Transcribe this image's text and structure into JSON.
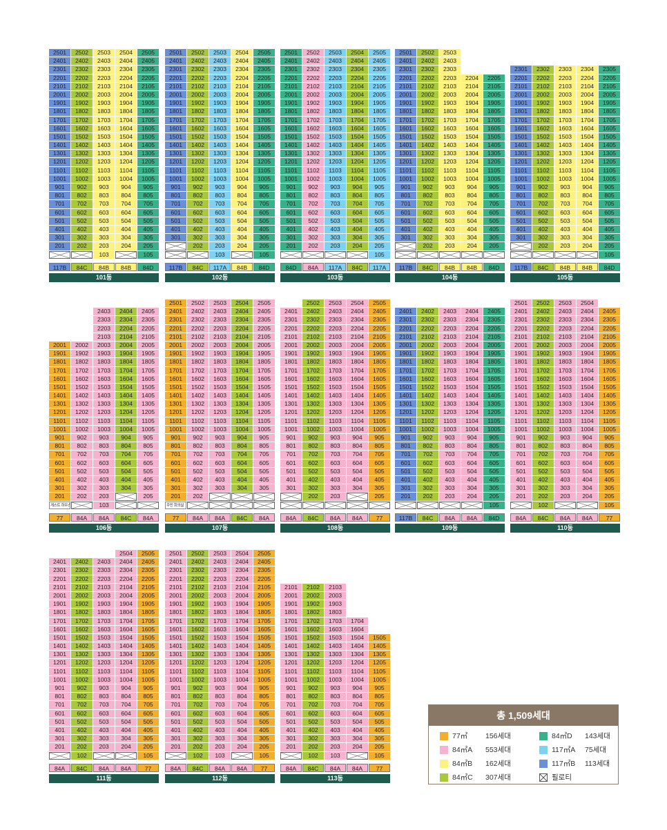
{
  "dongs": [
    {
      "name": "101동",
      "types": [
        {
          "l": "117B",
          "t": "117B"
        },
        {
          "l": "84C",
          "t": "84C"
        },
        {
          "l": "84B",
          "t": "84B"
        },
        {
          "l": "84B",
          "t": "84B"
        },
        {
          "l": "84D",
          "t": "84D"
        }
      ],
      "max_floor": 25,
      "pattern": {
        "top": {
          "1": 25,
          "2": 25,
          "3": 25,
          "4": 25,
          "5": 25
        },
        "bottom": {
          "1": 2,
          "2": 2,
          "3": 2,
          "4": 2,
          "5": 2
        }
      },
      "pil_above_top": [],
      "pil": {
        "1": [
          1
        ],
        "2": [
          1
        ],
        "3": [],
        "4": [
          1
        ],
        "5": []
      },
      "col_types": [
        "117B",
        "84C",
        "84B",
        "84B",
        "84D"
      ]
    },
    {
      "name": "102동",
      "types": [
        {
          "l": "117B",
          "t": "117B"
        },
        {
          "l": "84C",
          "t": "84C"
        },
        {
          "l": "117A",
          "t": "117A"
        },
        {
          "l": "84B",
          "t": "84B"
        },
        {
          "l": "84D",
          "t": "84D"
        }
      ],
      "max_floor": 25,
      "pattern": {
        "top": {
          "1": 25,
          "2": 25,
          "3": 25,
          "4": 25,
          "5": 25
        },
        "bottom": {
          "1": 3,
          "2": 2,
          "3": 2,
          "4": 2,
          "5": 2
        }
      },
      "pil": {
        "1": [
          1,
          2
        ],
        "2": [
          1
        ],
        "3": [],
        "4": [
          1
        ],
        "5": []
      },
      "col_types": [
        "117B",
        "84C",
        "117A",
        "84B",
        "84D"
      ]
    },
    {
      "name": "103동",
      "types": [
        {
          "l": "84D",
          "t": "84D"
        },
        {
          "l": "84A",
          "t": "84A"
        },
        {
          "l": "117A",
          "t": "117A"
        },
        {
          "l": "84C",
          "t": "84C"
        },
        {
          "l": "117A",
          "t": "117A"
        }
      ],
      "max_floor": 25,
      "pattern": {
        "top": {
          "1": 25,
          "2": 25,
          "3": 25,
          "4": 25,
          "5": 25
        },
        "bottom": {
          "1": 2,
          "2": 2,
          "3": 2,
          "4": 2,
          "5": 2
        }
      },
      "pil": {
        "1": [
          1
        ],
        "2": [
          1
        ],
        "3": [
          1
        ],
        "4": [
          1
        ],
        "5": []
      },
      "col_types": [
        "84D",
        "84A",
        "117A",
        "84C",
        "117A"
      ]
    },
    {
      "name": "104동",
      "types": [
        {
          "l": "117B",
          "t": "117B"
        },
        {
          "l": "84C",
          "t": "84C"
        },
        {
          "l": "84B",
          "t": "84B"
        },
        {
          "l": "84B",
          "t": "84B"
        },
        {
          "l": "84D",
          "t": "84D"
        }
      ],
      "max_floor": 25,
      "pattern": {
        "top": {
          "1": 25,
          "2": 25,
          "3": 25,
          "4": 22,
          "5": 22
        },
        "bottom": {
          "1": 3,
          "2": 2,
          "3": 2,
          "4": 2,
          "5": 2
        }
      },
      "pil": {
        "1": [
          1,
          2
        ],
        "2": [
          1
        ],
        "3": [
          1
        ],
        "4": [
          1
        ],
        "5": [
          1
        ]
      },
      "col_types": [
        "117B",
        "84C",
        "84B",
        "84B",
        "84D"
      ]
    },
    {
      "name": "105동",
      "types": [
        {
          "l": "117B",
          "t": "117B"
        },
        {
          "l": "84C",
          "t": "84C"
        },
        {
          "l": "84B",
          "t": "84B"
        },
        {
          "l": "84B",
          "t": "84B"
        },
        {
          "l": "84D",
          "t": "84D"
        }
      ],
      "max_floor": 25,
      "pattern": {
        "top": {
          "1": 23,
          "2": 23,
          "3": 23,
          "4": 23,
          "5": 23
        },
        "bottom": {
          "1": 3,
          "2": 2,
          "3": 2,
          "4": 2,
          "5": 2
        }
      },
      "pil": {
        "1": [
          1,
          2
        ],
        "2": [
          1
        ],
        "3": [
          1
        ],
        "4": [
          1
        ],
        "5": []
      },
      "col_types": [
        "117B",
        "84C",
        "84B",
        "84B",
        "84D"
      ]
    },
    {
      "name": "106동",
      "types": [
        {
          "l": "77",
          "t": "77"
        },
        {
          "l": "84A",
          "t": "84A"
        },
        {
          "l": "84A",
          "t": "84A"
        },
        {
          "l": "84C",
          "t": "84C"
        },
        {
          "l": "84A",
          "t": "84A"
        }
      ],
      "max_floor": 25,
      "pattern": {
        "top": {
          "1": 20,
          "2": 20,
          "3": 24,
          "4": 24,
          "5": 24
        },
        "bottom": {
          "1": 2,
          "2": 2,
          "3": 2,
          "4": 3,
          "5": 2
        }
      },
      "pil": {
        "1": [
          1
        ],
        "2": [
          1
        ],
        "3": [],
        "4": [
          1,
          2
        ],
        "5": [
          1
        ]
      },
      "note": {
        "col": 1,
        "floor": 1,
        "text": "게스트 하우스"
      },
      "col_types": [
        "77",
        "84A",
        "84A",
        "84C",
        "84A"
      ]
    },
    {
      "name": "107동",
      "types": [
        {
          "l": "77",
          "t": "77"
        },
        {
          "l": "84A",
          "t": "84A"
        },
        {
          "l": "84A",
          "t": "84A"
        },
        {
          "l": "84C",
          "t": "84C"
        },
        {
          "l": "84A",
          "t": "84A"
        }
      ],
      "max_floor": 25,
      "pattern": {
        "top": {
          "1": 25,
          "2": 25,
          "3": 25,
          "4": 25,
          "5": 25
        },
        "bottom": {
          "1": 2,
          "2": 2,
          "3": 3,
          "4": 3,
          "5": 3
        }
      },
      "pil": {
        "1": [
          1
        ],
        "2": [
          1
        ],
        "3": [
          1,
          2
        ],
        "4": [
          1,
          2
        ],
        "5": [
          1,
          2
        ]
      },
      "note": {
        "col": 1,
        "floor": 1,
        "text": "주민 회의실"
      },
      "col_types": [
        "77",
        "84A",
        "84A",
        "84C",
        "84A"
      ]
    },
    {
      "name": "108동",
      "types": [
        {
          "l": "84A",
          "t": "84A"
        },
        {
          "l": "84C",
          "t": "84C"
        },
        {
          "l": "84A",
          "t": "84A"
        },
        {
          "l": "84A",
          "t": "84A"
        },
        {
          "l": "77",
          "t": "77"
        }
      ],
      "max_floor": 25,
      "pattern": {
        "top": {
          "1": 24,
          "2": 25,
          "3": 25,
          "4": 25,
          "5": 25
        },
        "bottom": {
          "1": 3,
          "2": 2,
          "3": 2,
          "4": 3,
          "5": 2
        }
      },
      "pil": {
        "1": [
          1,
          2
        ],
        "2": [
          1
        ],
        "3": [
          1
        ],
        "4": [
          1,
          2
        ],
        "5": [
          1
        ]
      },
      "col_types": [
        "84A",
        "84C",
        "84A",
        "84A",
        "77"
      ]
    },
    {
      "name": "109동",
      "types": [
        {
          "l": "117B",
          "t": "117B"
        },
        {
          "l": "84C",
          "t": "84C"
        },
        {
          "l": "84A",
          "t": "84A"
        },
        {
          "l": "84A",
          "t": "84A"
        },
        {
          "l": "84D",
          "t": "84D"
        }
      ],
      "max_floor": 25,
      "pattern": {
        "top": {
          "1": 24,
          "2": 24,
          "3": 24,
          "4": 24,
          "5": 24
        },
        "bottom": {
          "1": 2,
          "2": 2,
          "3": 2,
          "4": 2,
          "5": 2
        }
      },
      "pil": {
        "1": [
          1
        ],
        "2": [
          1
        ],
        "3": [
          1
        ],
        "4": [
          1
        ],
        "5": []
      },
      "col_types": [
        "117B",
        "84C",
        "84A",
        "84A",
        "84D"
      ]
    },
    {
      "name": "110동",
      "types": [
        {
          "l": "84A",
          "t": "84A"
        },
        {
          "l": "84C",
          "t": "84C"
        },
        {
          "l": "84A",
          "t": "84A"
        },
        {
          "l": "84A",
          "t": "84A"
        },
        {
          "l": "77",
          "t": "77"
        }
      ],
      "max_floor": 25,
      "pattern": {
        "top": {
          "1": 25,
          "2": 25,
          "3": 25,
          "4": 25,
          "5": 24
        },
        "bottom": {
          "1": 2,
          "2": 2,
          "3": 2,
          "4": 2,
          "5": 2
        }
      },
      "pil": {
        "1": [
          1
        ],
        "2": [],
        "3": [
          1
        ],
        "4": [
          1
        ],
        "5": []
      },
      "col_types": [
        "84A",
        "84C",
        "84A",
        "84A",
        "77"
      ]
    },
    {
      "name": "111동",
      "types": [
        {
          "l": "84A",
          "t": "84A"
        },
        {
          "l": "84C",
          "t": "84C"
        },
        {
          "l": "84A",
          "t": "84A"
        },
        {
          "l": "84A",
          "t": "84A"
        },
        {
          "l": "77",
          "t": "77"
        }
      ],
      "max_floor": 25,
      "pattern": {
        "top": {
          "1": 24,
          "2": 24,
          "3": 24,
          "4": 25,
          "5": 25
        },
        "bottom": {
          "1": 2,
          "2": 2,
          "3": 2,
          "4": 2,
          "5": 2
        }
      },
      "pil": {
        "1": [
          1
        ],
        "2": [],
        "3": [
          1
        ],
        "4": [
          1
        ],
        "5": []
      },
      "col_types": [
        "84A",
        "84C",
        "84A",
        "84A",
        "77"
      ]
    },
    {
      "name": "112동",
      "types": [
        {
          "l": "84A",
          "t": "84A"
        },
        {
          "l": "84C",
          "t": "84C"
        },
        {
          "l": "84A",
          "t": "84A"
        },
        {
          "l": "84A",
          "t": "84A"
        },
        {
          "l": "77",
          "t": "77"
        }
      ],
      "max_floor": 25,
      "pattern": {
        "top": {
          "1": 25,
          "2": 25,
          "3": 25,
          "4": 25,
          "5": 25
        },
        "bottom": {
          "1": 2,
          "2": 2,
          "3": 2,
          "4": 2,
          "5": 2
        }
      },
      "pil": {
        "1": [
          1
        ],
        "2": [],
        "3": [],
        "4": [
          1
        ],
        "5": []
      },
      "col_types": [
        "84A",
        "84C",
        "84A",
        "84A",
        "77"
      ]
    },
    {
      "name": "113동",
      "types": [
        {
          "l": "84A",
          "t": "84A"
        },
        {
          "l": "84C",
          "t": "84C"
        },
        {
          "l": "84A",
          "t": "84A"
        },
        {
          "l": "84A",
          "t": "84A"
        },
        {
          "l": "77",
          "t": "77"
        }
      ],
      "max_floor": 25,
      "pattern": {
        "top": {
          "1": 21,
          "2": 21,
          "3": 21,
          "4": 17,
          "5": 15
        },
        "bottom": {
          "1": 2,
          "2": 2,
          "3": 2,
          "4": 2,
          "5": 2
        }
      },
      "pil": {
        "1": [
          1
        ],
        "2": [],
        "3": [],
        "4": [
          1
        ],
        "5": []
      },
      "col_types": [
        "84A",
        "84C",
        "84A",
        "84A",
        "77"
      ]
    }
  ],
  "legend": {
    "title": "총 1,509세대",
    "items": [
      {
        "name": "77㎡",
        "count": "156세대",
        "color": "#f2ae2f"
      },
      {
        "name": "84㎡A",
        "count": "553세대",
        "color": "#f6b3d0"
      },
      {
        "name": "84㎡B",
        "count": "162세대",
        "color": "#fdf27d"
      },
      {
        "name": "84㎡C",
        "count": "307세대",
        "color": "#aac83b"
      },
      {
        "name": "84㎡D",
        "count": "143세대",
        "color": "#38b088"
      },
      {
        "name": "117㎡A",
        "count": "75세대",
        "color": "#7fd1f2"
      },
      {
        "name": "117㎡B",
        "count": "113세대",
        "color": "#6b8fd6"
      }
    ],
    "pilotis_label": "필로티"
  }
}
